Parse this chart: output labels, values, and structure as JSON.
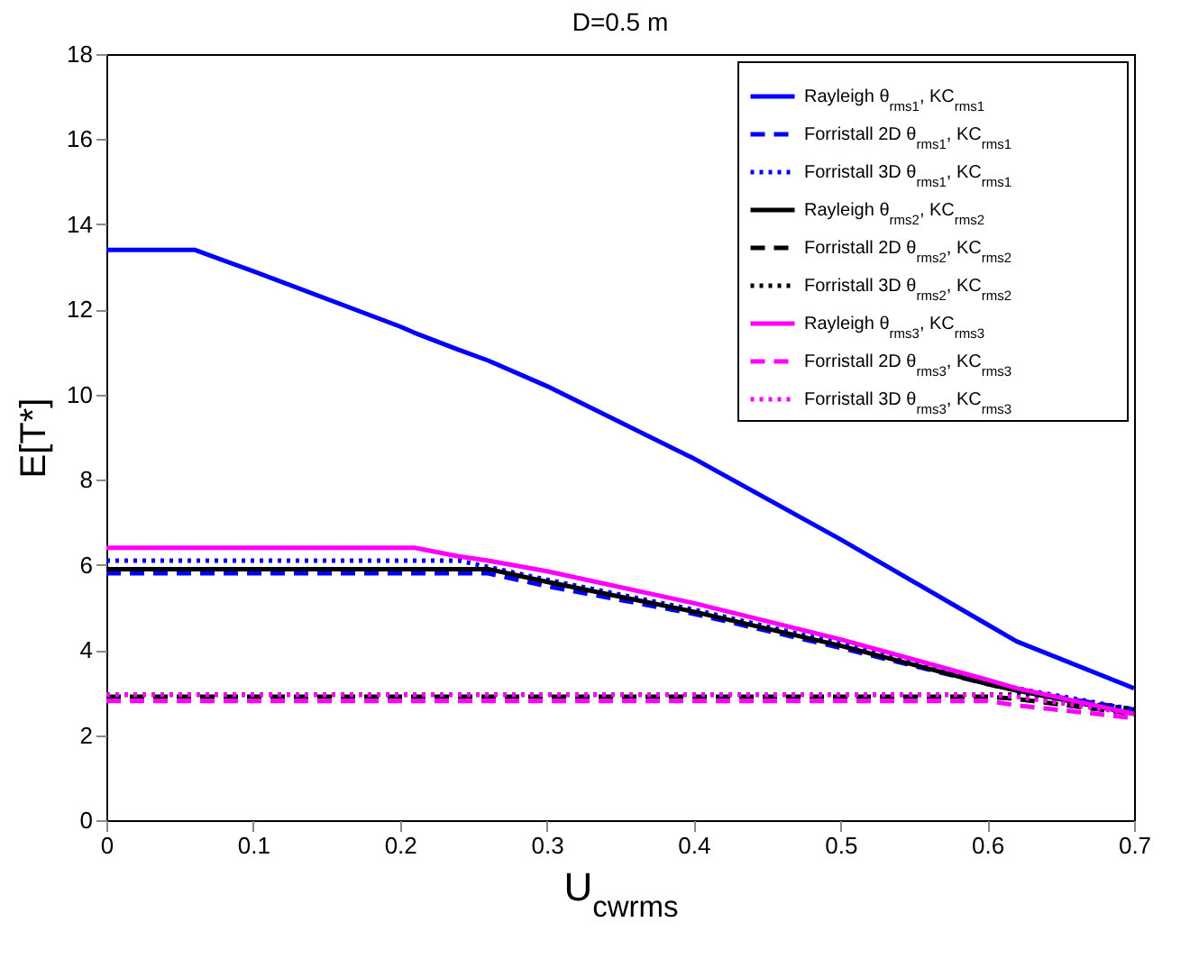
{
  "chart_data": {
    "type": "line",
    "title": "D=0.5 m",
    "xlabel": "U$_{cwrms}$",
    "ylabel": "E[T*]",
    "xlim": [
      0,
      0.7
    ],
    "ylim": [
      0,
      18
    ],
    "xticks": [
      0,
      0.1,
      0.2,
      0.3,
      0.4,
      0.5,
      0.6,
      0.7
    ],
    "yticks": [
      0,
      2,
      4,
      6,
      8,
      10,
      12,
      14,
      16,
      18
    ],
    "grid": false,
    "legend": "top right",
    "marker": "none",
    "x": [
      0,
      0.06,
      0.1,
      0.2,
      0.21,
      0.24,
      0.26,
      0.3,
      0.4,
      0.5,
      0.6,
      0.62,
      0.7
    ],
    "series": [
      {
        "name": "Rayleigh θ$_{rms1}$, KC$_{rms1}$",
        "color": "#0000ff",
        "line_style": "solid",
        "values": [
          13.4,
          13.4,
          12.9,
          11.6,
          11.45,
          11.05,
          10.8,
          10.2,
          8.5,
          6.6,
          4.6,
          4.2,
          3.1
        ]
      },
      {
        "name": "Forristall 2D θ$_{rms1}$, KC$_{rms1}$",
        "color": "#0000ff",
        "line_style": "dashed",
        "values": [
          5.8,
          5.8,
          5.8,
          5.8,
          5.8,
          5.8,
          5.8,
          5.5,
          4.85,
          4.05,
          3.2,
          3.05,
          2.6
        ]
      },
      {
        "name": "Forristall 3D θ$_{rms1}$, KC$_{rms1}$",
        "color": "#0000ff",
        "line_style": "dotted",
        "values": [
          6.1,
          6.1,
          6.1,
          6.1,
          6.1,
          6.1,
          5.95,
          5.65,
          4.95,
          4.15,
          3.25,
          3.1,
          2.6
        ]
      },
      {
        "name": "Rayleigh θ$_{rms2}$, KC$_{rms2}$",
        "color": "#000000",
        "line_style": "solid",
        "values": [
          5.9,
          5.9,
          5.9,
          5.9,
          5.9,
          5.9,
          5.9,
          5.6,
          4.9,
          4.1,
          3.2,
          3.05,
          2.5
        ]
      },
      {
        "name": "Forristall 2D θ$_{rms2}$, KC$_{rms2}$",
        "color": "#000000",
        "line_style": "dashed",
        "values": [
          2.9,
          2.9,
          2.9,
          2.9,
          2.9,
          2.9,
          2.9,
          2.9,
          2.9,
          2.9,
          2.9,
          2.85,
          2.5
        ]
      },
      {
        "name": "Forristall 3D θ$_{rms2}$, KC$_{rms2}$",
        "color": "#000000",
        "line_style": "dotted",
        "values": [
          2.95,
          2.95,
          2.95,
          2.95,
          2.95,
          2.95,
          2.95,
          2.95,
          2.95,
          2.95,
          2.95,
          2.95,
          2.6
        ]
      },
      {
        "name": "Rayleigh θ$_{rms3}$, KC$_{rms3}$",
        "color": "#ff00ff",
        "line_style": "solid",
        "values": [
          6.4,
          6.4,
          6.4,
          6.4,
          6.4,
          6.2,
          6.1,
          5.85,
          5.1,
          4.25,
          3.3,
          3.1,
          2.5
        ]
      },
      {
        "name": "Forristall 2D θ$_{rms3}$, KC$_{rms3}$",
        "color": "#ff00ff",
        "line_style": "dashed",
        "values": [
          2.8,
          2.8,
          2.8,
          2.8,
          2.8,
          2.8,
          2.8,
          2.8,
          2.8,
          2.8,
          2.8,
          2.7,
          2.4
        ]
      },
      {
        "name": "Forristall 3D θ$_{rms3}$, KC$_{rms3}$",
        "color": "#ff00ff",
        "line_style": "dotted",
        "values": [
          2.95,
          2.95,
          2.95,
          2.95,
          2.95,
          2.95,
          2.95,
          2.95,
          2.95,
          2.95,
          2.95,
          2.9,
          2.5
        ]
      }
    ]
  }
}
